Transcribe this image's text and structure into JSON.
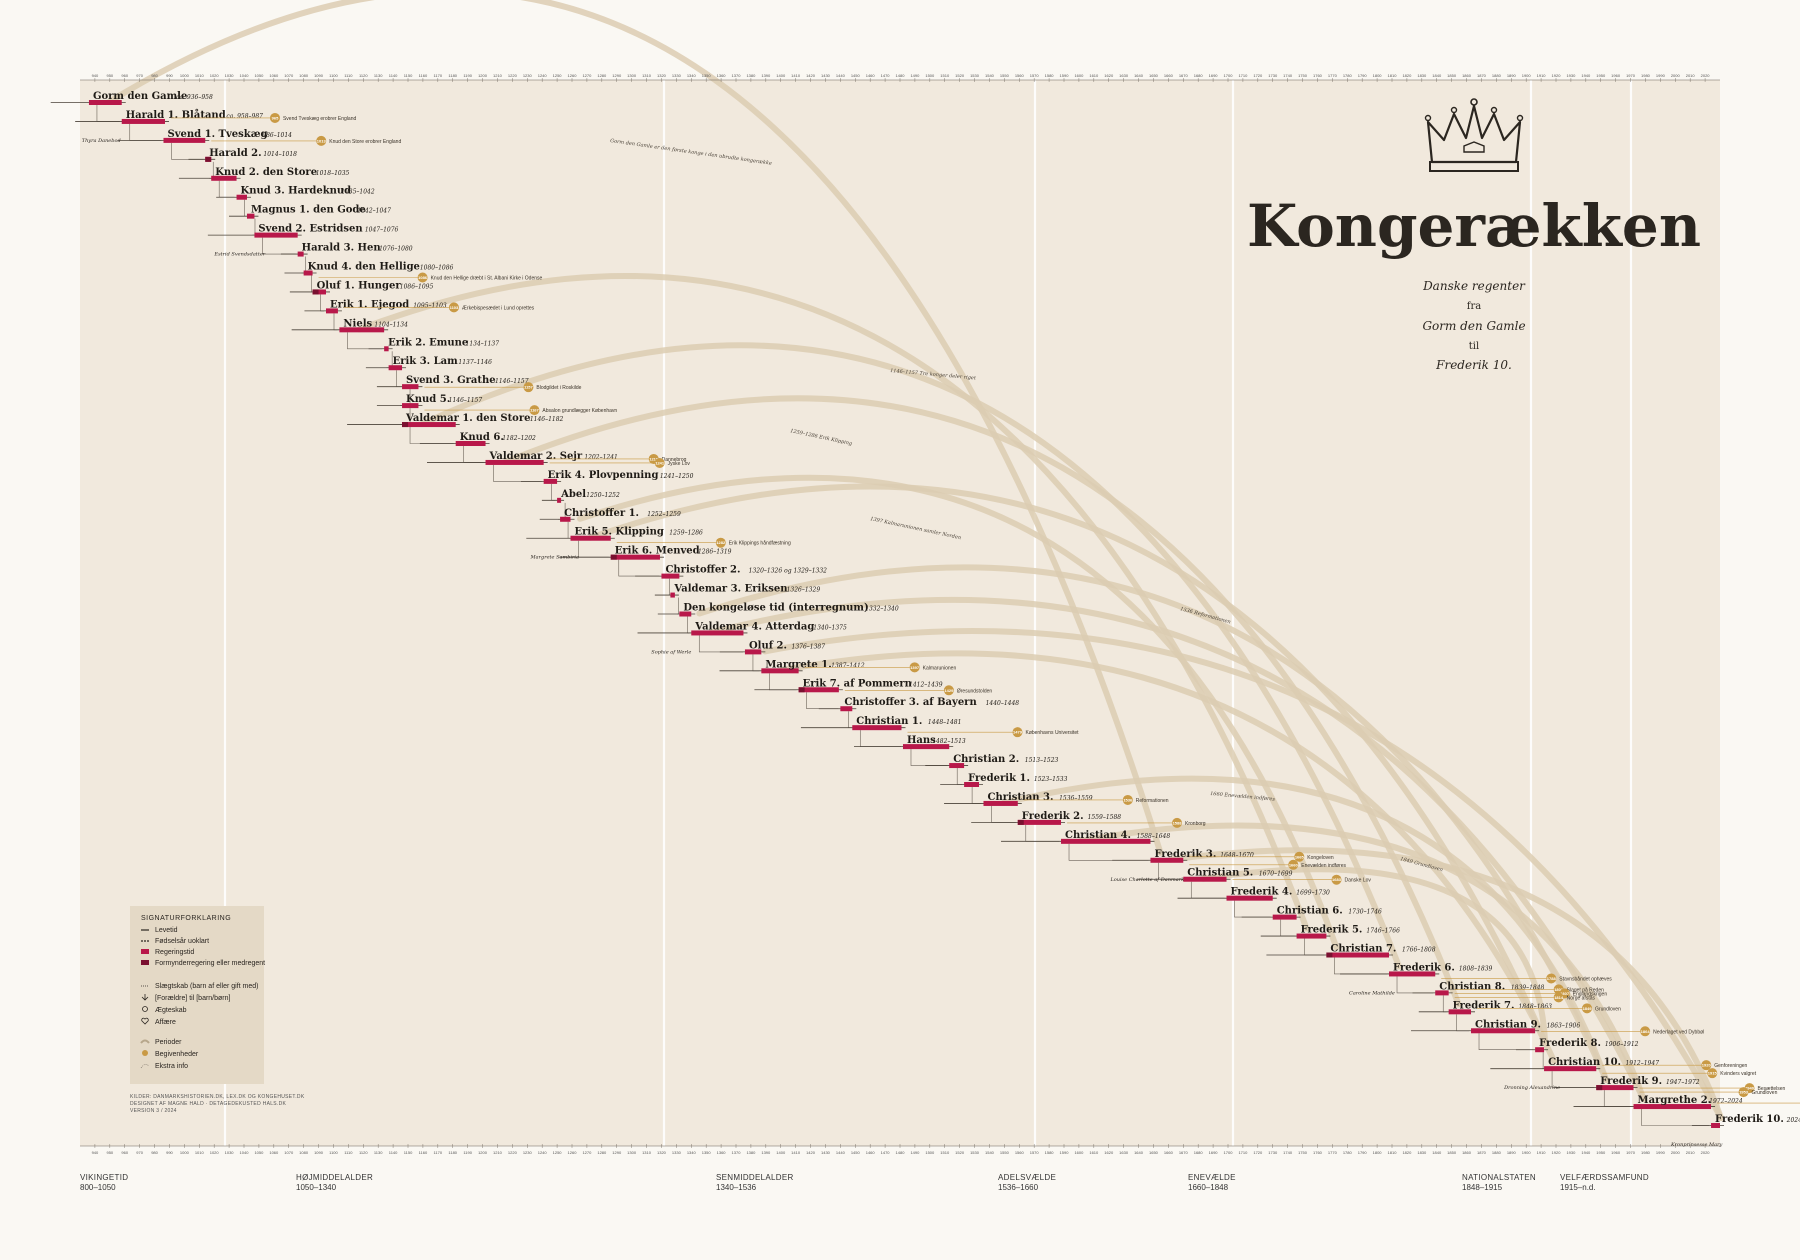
{
  "title": {
    "main": "Kongerækken",
    "line1": "Danske regenter",
    "line2": "fra",
    "line3": "Gorm den Gamle",
    "line4": "til",
    "line5": "Frederik 10."
  },
  "colors": {
    "background": "#faf8f3",
    "panel": "#f1e9dd",
    "reign": "#b8184a",
    "regency": "#7a1030",
    "event": "#c99a45",
    "arc": "#dccdb2",
    "line": "#6b6258"
  },
  "periods": [
    {
      "name": "VIKINGETID",
      "range": "800–1050"
    },
    {
      "name": "HØJMIDDELALDER",
      "range": "1050–1340"
    },
    {
      "name": "SENMIDDELALDER",
      "range": "1340–1536"
    },
    {
      "name": "ADELSVÆLDE",
      "range": "1536–1660"
    },
    {
      "name": "ENEVÆLDE",
      "range": "1660–1848"
    },
    {
      "name": "NATIONALSTATEN",
      "range": "1848–1915"
    },
    {
      "name": "VELFÆRDSSAMFUND",
      "range": "1915–n.d."
    }
  ],
  "timeline": {
    "start_year": 930,
    "end_year": 2030
  },
  "regents": [
    {
      "name": "Gorm den Gamle",
      "years": "ca. 936–958",
      "start": 936,
      "end": 958
    },
    {
      "name": "Harald 1. Blåtand",
      "years": "ca. 958–987",
      "start": 958,
      "end": 987
    },
    {
      "name": "Svend 1. Tveskæg",
      "years": "986–1014",
      "start": 986,
      "end": 1014
    },
    {
      "name": "Harald 2.",
      "years": "1014–1018",
      "start": 1014,
      "end": 1018
    },
    {
      "name": "Knud 2. den Store",
      "years": "1018–1035",
      "start": 1018,
      "end": 1035
    },
    {
      "name": "Knud 3. Hardeknud",
      "years": "1035–1042",
      "start": 1035,
      "end": 1042
    },
    {
      "name": "Magnus 1. den Gode",
      "years": "1042–1047",
      "start": 1042,
      "end": 1047
    },
    {
      "name": "Svend 2. Estridsen",
      "years": "1047–1076",
      "start": 1047,
      "end": 1076
    },
    {
      "name": "Harald 3. Hen",
      "years": "1076–1080",
      "start": 1076,
      "end": 1080
    },
    {
      "name": "Knud 4. den Hellige",
      "years": "1080–1086",
      "start": 1080,
      "end": 1086
    },
    {
      "name": "Oluf 1. Hunger",
      "years": "1086–1095",
      "start": 1086,
      "end": 1095
    },
    {
      "name": "Erik 1. Ejegod",
      "years": "1095–1103",
      "start": 1095,
      "end": 1103
    },
    {
      "name": "Niels",
      "years": "1104–1134",
      "start": 1104,
      "end": 1134
    },
    {
      "name": "Erik 2. Emune",
      "years": "1134–1137",
      "start": 1134,
      "end": 1137
    },
    {
      "name": "Erik 3. Lam",
      "years": "1137–1146",
      "start": 1137,
      "end": 1146
    },
    {
      "name": "Svend 3. Grathe",
      "years": "1146–1157",
      "start": 1146,
      "end": 1157
    },
    {
      "name": "Knud 5.",
      "years": "1146–1157",
      "start": 1146,
      "end": 1157
    },
    {
      "name": "Valdemar 1. den Store",
      "years": "1146–1182",
      "start": 1146,
      "end": 1182
    },
    {
      "name": "Knud 6.",
      "years": "1182–1202",
      "start": 1182,
      "end": 1202
    },
    {
      "name": "Valdemar 2. Sejr",
      "years": "1202–1241",
      "start": 1202,
      "end": 1241
    },
    {
      "name": "Erik 4. Plovpenning",
      "years": "1241–1250",
      "start": 1241,
      "end": 1250
    },
    {
      "name": "Abel",
      "years": "1250–1252",
      "start": 1250,
      "end": 1252
    },
    {
      "name": "Christoffer 1.",
      "years": "1252–1259",
      "start": 1252,
      "end": 1259
    },
    {
      "name": "Erik 5. Klipping",
      "years": "1259–1286",
      "start": 1259,
      "end": 1286
    },
    {
      "name": "Erik 6. Menved",
      "years": "1286–1319",
      "start": 1286,
      "end": 1319
    },
    {
      "name": "Christoffer 2.",
      "years": "1320–1326 og 1329–1332",
      "start": 1320,
      "end": 1332
    },
    {
      "name": "Valdemar 3. Eriksen",
      "years": "1326–1329",
      "start": 1326,
      "end": 1329
    },
    {
      "name": "Den kongeløse tid (interregnum)",
      "years": "1332–1340",
      "start": 1332,
      "end": 1340
    },
    {
      "name": "Valdemar 4. Atterdag",
      "years": "1340–1375",
      "start": 1340,
      "end": 1375
    },
    {
      "name": "Oluf 2.",
      "years": "1376–1387",
      "start": 1376,
      "end": 1387
    },
    {
      "name": "Margrete 1.",
      "years": "1387–1412",
      "start": 1387,
      "end": 1412
    },
    {
      "name": "Erik 7. af Pommern",
      "years": "1412–1439",
      "start": 1412,
      "end": 1439
    },
    {
      "name": "Christoffer 3. af Bayern",
      "years": "1440–1448",
      "start": 1440,
      "end": 1448
    },
    {
      "name": "Christian 1.",
      "years": "1448–1481",
      "start": 1448,
      "end": 1481
    },
    {
      "name": "Hans",
      "years": "1482–1513",
      "start": 1482,
      "end": 1513
    },
    {
      "name": "Christian 2.",
      "years": "1513–1523",
      "start": 1513,
      "end": 1523
    },
    {
      "name": "Frederik 1.",
      "years": "1523–1533",
      "start": 1523,
      "end": 1533
    },
    {
      "name": "Christian 3.",
      "years": "1536–1559",
      "start": 1536,
      "end": 1559
    },
    {
      "name": "Frederik 2.",
      "years": "1559–1588",
      "start": 1559,
      "end": 1588
    },
    {
      "name": "Christian 4.",
      "years": "1588–1648",
      "start": 1588,
      "end": 1648
    },
    {
      "name": "Frederik 3.",
      "years": "1648–1670",
      "start": 1648,
      "end": 1670
    },
    {
      "name": "Christian 5.",
      "years": "1670–1699",
      "start": 1670,
      "end": 1699
    },
    {
      "name": "Frederik 4.",
      "years": "1699–1730",
      "start": 1699,
      "end": 1730
    },
    {
      "name": "Christian 6.",
      "years": "1730–1746",
      "start": 1730,
      "end": 1746
    },
    {
      "name": "Frederik 5.",
      "years": "1746–1766",
      "start": 1746,
      "end": 1766
    },
    {
      "name": "Christian 7.",
      "years": "1766–1808",
      "start": 1766,
      "end": 1808
    },
    {
      "name": "Frederik 6.",
      "years": "1808–1839",
      "start": 1808,
      "end": 1839
    },
    {
      "name": "Christian 8.",
      "years": "1839–1848",
      "start": 1839,
      "end": 1848
    },
    {
      "name": "Frederik 7.",
      "years": "1848–1863",
      "start": 1848,
      "end": 1863
    },
    {
      "name": "Christian 9.",
      "years": "1863–1906",
      "start": 1863,
      "end": 1906
    },
    {
      "name": "Frederik 8.",
      "years": "1906–1912",
      "start": 1906,
      "end": 1912
    },
    {
      "name": "Christian 10.",
      "years": "1912–1947",
      "start": 1912,
      "end": 1947
    },
    {
      "name": "Frederik 9.",
      "years": "1947–1972",
      "start": 1947,
      "end": 1972
    },
    {
      "name": "Margrethe 2.",
      "years": "1972–2024",
      "start": 1972,
      "end": 2024
    },
    {
      "name": "Frederik 10.",
      "years": "2024–",
      "start": 2024,
      "end": 2030
    }
  ],
  "events": [
    {
      "year": "965",
      "text": "Svend Tveskæg erobrer England"
    },
    {
      "year": "1013",
      "text": "Knud den Store erobrer England"
    },
    {
      "year": "1086",
      "text": "Knud den Hellige dræbt i St. Albani Kirke i Odense"
    },
    {
      "year": "1103",
      "text": "Ærkebispesædet i Lund oprettes"
    },
    {
      "year": "1157",
      "text": "Blodgildet i Roskilde"
    },
    {
      "year": "1167",
      "text": "Absalon grundlægger København"
    },
    {
      "year": "1219",
      "text": "Dannebrog"
    },
    {
      "year": "1241",
      "text": "Jyske Lov"
    },
    {
      "year": "1282",
      "text": "Erik Klippings håndfæstning"
    },
    {
      "year": "1397",
      "text": "Kalmarunionen"
    },
    {
      "year": "1429",
      "text": "Øresundstolden"
    },
    {
      "year": "1479",
      "text": "Københavns Universitet"
    },
    {
      "year": "1536",
      "text": "Reformationen"
    },
    {
      "year": "1588",
      "text": "Kronborg"
    },
    {
      "year": "1660",
      "text": "Enevælden indføres"
    },
    {
      "year": "1665",
      "text": "Kongeloven"
    },
    {
      "year": "1683",
      "text": "Danske Lov"
    },
    {
      "year": "1788",
      "text": "Stavnsbåndet ophæves"
    },
    {
      "year": "1801",
      "text": "Slaget på Reden"
    },
    {
      "year": "1807",
      "text": "Englandskrigen"
    },
    {
      "year": "1814",
      "text": "Norge afstås"
    },
    {
      "year": "1849",
      "text": "Grundloven"
    },
    {
      "year": "1864",
      "text": "Nederlaget ved Dybbøl"
    },
    {
      "year": "1915",
      "text": "Kvinders valgret"
    },
    {
      "year": "1920",
      "text": "Genforeningen"
    },
    {
      "year": "1940",
      "text": "Besættelsen"
    },
    {
      "year": "1953",
      "text": "Grundloven"
    },
    {
      "year": "1973",
      "text": "Danmark i EF"
    }
  ],
  "arc_notes": [
    "Gorm den Gamle er den første konge i den ubrudte kongerække",
    "1146–1157 Tre konger deler riget",
    "1259–1286 Erik Klipping",
    "1397 Kalmarunionen samler Norden",
    "1536 Reformationen",
    "1660 Enevælden indføres",
    "1849 Grundloven"
  ],
  "spouses": [
    {
      "label": "Thyra Danebod"
    },
    {
      "label": "Estrid Svendsdatter"
    },
    {
      "label": "Margrete Sambiria"
    },
    {
      "label": "Sophie af Werle"
    },
    {
      "label": "Louise Charlotte af Danmark"
    },
    {
      "label": "Caroline Mathilde"
    },
    {
      "label": "Dronning Alexandrine"
    },
    {
      "label": "Kronprinsesse Mary"
    }
  ],
  "legend": {
    "title": "SIGNATURFORKLARING",
    "items": [
      "Levetid",
      "Fødselsår uoklart",
      "Regeringstid",
      "Formynderregering eller medregent",
      "Slægtskab (barn af eller gift med)",
      "[Forældre] til [barn/børn]",
      "Ægteskab",
      "Affære",
      "Perioder",
      "Begivenheder",
      "Ekstra info"
    ]
  },
  "credit": {
    "line1": "KILDER: DANMARKSHISTORIEN.DK, LEX.DK OG KONGEHUSET.DK",
    "line2": "DESIGNET AF MAGNE HALD · DETAGEDEKUSTED HALS.DK",
    "line3": "VERSION 3 / 2024"
  }
}
